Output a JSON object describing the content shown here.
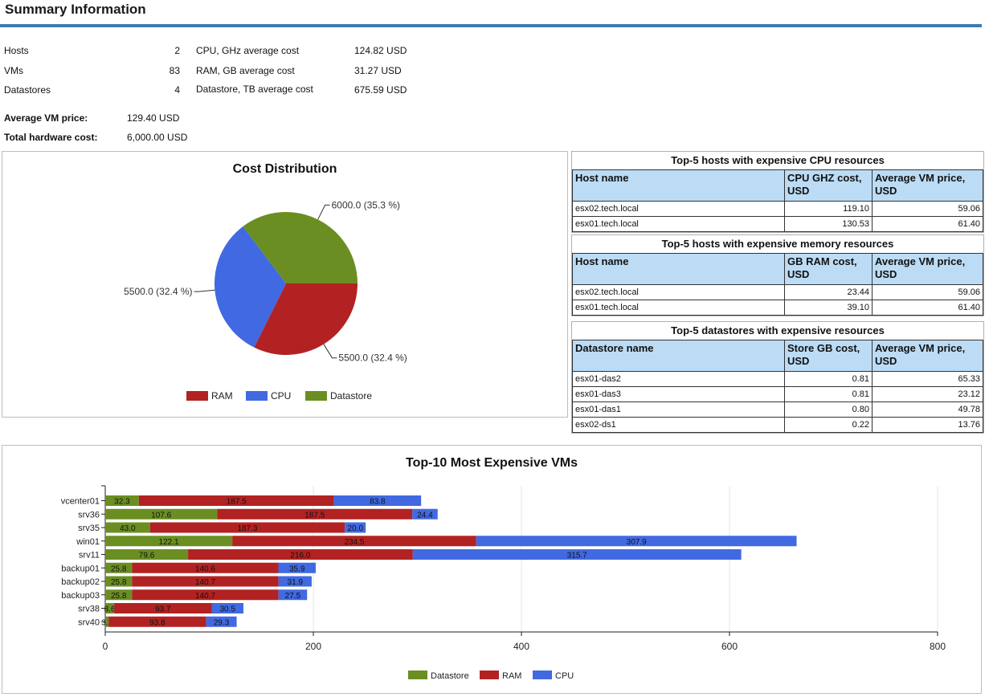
{
  "page": {
    "title": "Summary Information"
  },
  "summary": {
    "left": [
      {
        "label": "Hosts",
        "value": "2"
      },
      {
        "label": "VMs",
        "value": "83"
      },
      {
        "label": "Datastores",
        "value": "4"
      }
    ],
    "right": [
      {
        "label": "CPU, GHz average cost",
        "value": "124.82 USD"
      },
      {
        "label": "RAM, GB average cost",
        "value": "31.27 USD"
      },
      {
        "label": "Datastore, TB average cost",
        "value": "675.59 USD"
      }
    ],
    "avg_vm_price": {
      "label": "Average VM price:",
      "value": "129.40 USD"
    },
    "total_hw_cost": {
      "label": "Total hardware cost:",
      "value": "6,000.00 USD"
    }
  },
  "tables": {
    "cpu": {
      "title": "Top-5 hosts with expensive CPU resources",
      "headers": [
        "Host name",
        "CPU GHZ cost, USD",
        "Average VM price, USD"
      ],
      "rows": [
        [
          "esx02.tech.local",
          "119.10",
          "59.06"
        ],
        [
          "esx01.tech.local",
          "130.53",
          "61.40"
        ]
      ]
    },
    "memory": {
      "title": "Top-5 hosts with expensive memory resources",
      "headers": [
        "Host name",
        "GB RAM cost, USD",
        "Average VM price, USD"
      ],
      "rows": [
        [
          "esx02.tech.local",
          "23.44",
          "59.06"
        ],
        [
          "esx01.tech.local",
          "39.10",
          "61.40"
        ]
      ]
    },
    "datastores": {
      "title": "Top-5 datastores with expensive resources",
      "headers": [
        "Datastore name",
        "Store GB cost, USD",
        "Average VM price, USD"
      ],
      "rows": [
        [
          "esx01-das2",
          "0.81",
          "65.33"
        ],
        [
          "esx01-das3",
          "0.81",
          "23.12"
        ],
        [
          "esx01-das1",
          "0.80",
          "49.78"
        ],
        [
          "esx02-ds1",
          "0.22",
          "13.76"
        ]
      ]
    }
  },
  "chart_data": [
    {
      "type": "pie",
      "title": "Cost Distribution",
      "labels": [
        "RAM",
        "CPU",
        "Datastore"
      ],
      "values": [
        5500.0,
        5500.0,
        6000.0
      ],
      "slice_labels": [
        "5500.0 (32.4 %)",
        "5500.0 (32.4 %)",
        "6000.0 (35.3 %)"
      ],
      "colors": [
        "#b22222",
        "#4169e1",
        "#6b8e23"
      ],
      "legend": "bottom"
    },
    {
      "type": "bar",
      "orientation": "horizontal",
      "stacked": true,
      "title": "Top-10 Most Expensive VMs",
      "categories": [
        "vcenter01",
        "srv36",
        "srv35",
        "win01",
        "srv11",
        "backup01",
        "backup02",
        "backup03",
        "srv38",
        "srv40"
      ],
      "series": [
        {
          "name": "Datastore",
          "color": "#6b8e23",
          "values": [
            32.3,
            107.6,
            43.0,
            122.1,
            79.6,
            25.8,
            25.8,
            25.8,
            8.6,
            3.2
          ]
        },
        {
          "name": "RAM",
          "color": "#b22222",
          "values": [
            187.5,
            187.5,
            187.3,
            234.5,
            216.0,
            140.6,
            140.7,
            140.7,
            93.7,
            93.8
          ]
        },
        {
          "name": "CPU",
          "color": "#4169e1",
          "values": [
            83.8,
            24.4,
            20.0,
            307.9,
            315.7,
            35.9,
            31.9,
            27.5,
            30.5,
            29.3
          ]
        }
      ],
      "xlim": [
        0,
        800
      ],
      "xticks": [
        0,
        200,
        400,
        600,
        800
      ],
      "grid": true,
      "legend": "bottom"
    }
  ]
}
